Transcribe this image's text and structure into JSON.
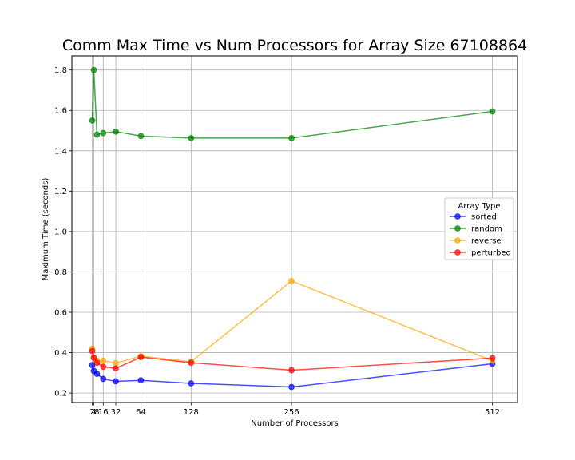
{
  "chart_data": {
    "type": "line",
    "title": "Comm Max Time vs Num Processors for Array Size 67108864",
    "xlabel": "Number of Processors",
    "ylabel": "Maximum Time (seconds)",
    "x": [
      2,
      4,
      8,
      16,
      32,
      64,
      128,
      256,
      512
    ],
    "xticks": [
      2,
      4,
      8,
      16,
      32,
      64,
      128,
      256,
      512
    ],
    "yticks": [
      0.2,
      0.4,
      0.6,
      0.8,
      1.0,
      1.2,
      1.4,
      1.6,
      1.8
    ],
    "xlim": [
      -24,
      544
    ],
    "ylim": [
      0.153,
      1.87
    ],
    "grid": true,
    "legend": {
      "title": "Array Type",
      "placement": "center-right"
    },
    "series": [
      {
        "name": "sorted",
        "color": "#0000ff",
        "values": [
          0.338,
          0.31,
          0.295,
          0.27,
          0.258,
          0.263,
          0.248,
          0.23,
          0.345
        ]
      },
      {
        "name": "random",
        "color": "#008000",
        "values": [
          1.55,
          1.8,
          1.48,
          1.488,
          1.495,
          1.473,
          1.463,
          1.463,
          1.595
        ]
      },
      {
        "name": "reverse",
        "color": "#ffa500",
        "values": [
          0.42,
          0.375,
          0.36,
          0.36,
          0.348,
          0.383,
          0.355,
          0.755,
          0.36
        ]
      },
      {
        "name": "perturbed",
        "color": "#ff0000",
        "values": [
          0.408,
          0.375,
          0.35,
          0.33,
          0.322,
          0.378,
          0.35,
          0.313,
          0.373
        ]
      }
    ]
  }
}
